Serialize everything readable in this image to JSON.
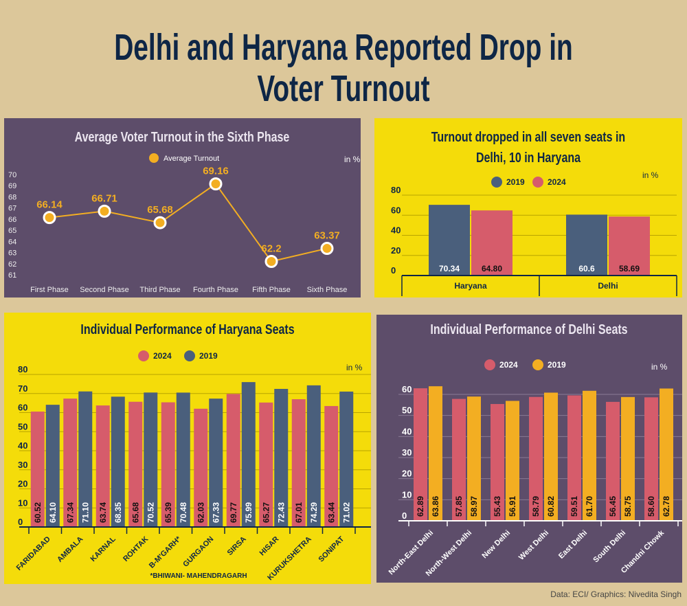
{
  "header": {
    "title_line1": "Delhi and Haryana Reported Drop in",
    "title_line2": "Voter Turnout"
  },
  "footer": {
    "credit": "Data: ECI/ Graphics: Nivedita Singh"
  },
  "colors": {
    "background": "#dcc79a",
    "purple_panel": "#5d4d6a",
    "yellow_panel": "#f4dc0a",
    "red_2024": "#d65c6b",
    "navy_2019": "#4a5f7c",
    "gold": "#f3ae22",
    "title": "#0e2646"
  },
  "chart_data": [
    {
      "type": "line",
      "title": "Average Voter Turnout in the Sixth Phase",
      "unit_label": "in %",
      "categories": [
        "First Phase",
        "Second Phase",
        "Third Phase",
        "Fourth Phase",
        "Fifth Phase",
        "Sixth Phase"
      ],
      "series": [
        {
          "name": "Average Turnout",
          "values": [
            66.14,
            66.71,
            65.68,
            69.16,
            62.2,
            63.37
          ]
        }
      ],
      "ylim": [
        61,
        70
      ],
      "yticks": [
        "70",
        "69",
        "68",
        "67",
        "66",
        "65",
        "64",
        "63",
        "62",
        "61"
      ],
      "grid": false,
      "legend": "top"
    },
    {
      "type": "bar",
      "title_line1": "Turnout dropped in all seven seats in",
      "title_line2": "Delhi, 10 in Haryana",
      "unit_label": "in %",
      "categories": [
        "Haryana",
        "Delhi"
      ],
      "series": [
        {
          "name": "2019",
          "values": [
            70.34,
            60.6
          ],
          "labels": [
            "70.34",
            "60.6"
          ]
        },
        {
          "name": "2024",
          "values": [
            64.8,
            58.69
          ],
          "labels": [
            "64.80",
            "58.69"
          ]
        }
      ],
      "ylim": [
        0,
        80
      ],
      "yticks": [
        "0",
        "20",
        "40",
        "60",
        "80"
      ],
      "grid": true,
      "legend": "top"
    },
    {
      "type": "bar",
      "title": "Individual Performance of Haryana Seats",
      "unit_label": "in %",
      "footnote": "*BHIWANI- MAHENDRAGARH",
      "categories": [
        "FARIDABAD",
        "AMBALA",
        "KARNAL",
        "ROHTAK",
        "B-M'GARH*",
        "GURGAON",
        "SIRSA",
        "HISAR",
        "KURUKSHETRA",
        "SONIPAT"
      ],
      "series": [
        {
          "name": "2024",
          "values": [
            60.52,
            67.34,
            63.74,
            65.68,
            65.39,
            62.03,
            69.77,
            65.27,
            67.01,
            63.44
          ],
          "labels": [
            "60.52",
            "67.34",
            "63.74",
            "65.68",
            "65.39",
            "62.03",
            "69.77",
            "65.27",
            "67.01",
            "63.44"
          ]
        },
        {
          "name": "2019",
          "values": [
            64.1,
            71.1,
            68.35,
            70.52,
            70.48,
            67.33,
            75.99,
            72.43,
            74.29,
            71.02
          ],
          "labels": [
            "64.10",
            "71.10",
            "68.35",
            "70.52",
            "70.48",
            "67.33",
            "75.99",
            "72.43",
            "74.29",
            "71.02"
          ]
        }
      ],
      "ylim": [
        0,
        80
      ],
      "yticks": [
        "0",
        "10",
        "20",
        "30",
        "40",
        "50",
        "60",
        "70",
        "80"
      ],
      "grid": true,
      "legend": "top"
    },
    {
      "type": "bar",
      "title": "Individual Performance of Delhi Seats",
      "unit_label": "in %",
      "categories": [
        "North-East Delhi",
        "North-West Delhi",
        "New Delhi",
        "West Delhi",
        "East Delhi",
        "South Delhi",
        "Chandni Chowk"
      ],
      "series": [
        {
          "name": "2024",
          "values": [
            62.89,
            57.85,
            55.43,
            58.79,
            59.51,
            56.45,
            58.6
          ],
          "labels": [
            "62.89",
            "57.85",
            "55.43",
            "58.79",
            "59.51",
            "56.45",
            "58.60"
          ]
        },
        {
          "name": "2019",
          "values": [
            63.86,
            58.97,
            56.91,
            60.82,
            61.7,
            58.75,
            62.78
          ],
          "labels": [
            "63.86",
            "58.97",
            "56.91",
            "60.82",
            "61.70",
            "58.75",
            "62.78"
          ]
        }
      ],
      "ylim": [
        0,
        60
      ],
      "yticks": [
        "0",
        "10",
        "20",
        "30",
        "40",
        "50",
        "60"
      ],
      "grid": true,
      "legend": "top"
    }
  ]
}
